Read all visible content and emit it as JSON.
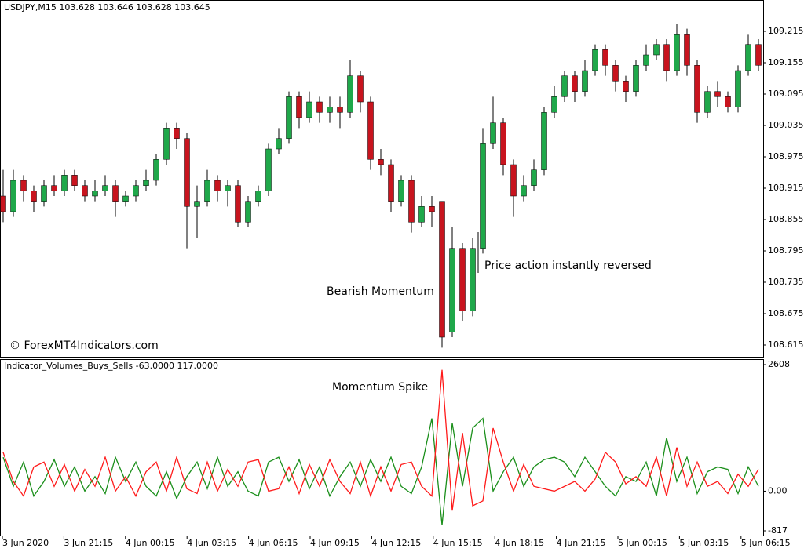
{
  "chart_data": [
    {
      "type": "candlestick",
      "title": "USDJPY,M15  103.628 103.646 103.628 103.645",
      "watermark": "© ForexMT4Indicators.com",
      "annotations": [
        "Bearish Momentum",
        "Price action instantly reversed"
      ],
      "up_color": "#1fa84a",
      "down_color": "#c8141e",
      "ylim": [
        108.5925,
        109.275
      ],
      "yticks": [
        109.215,
        109.155,
        109.095,
        109.035,
        108.975,
        108.915,
        108.855,
        108.795,
        108.735,
        108.675,
        108.615
      ],
      "candles": [
        [
          108.9,
          108.95,
          108.85,
          108.87
        ],
        [
          108.87,
          108.95,
          108.86,
          108.93
        ],
        [
          108.93,
          108.94,
          108.89,
          108.91
        ],
        [
          108.91,
          108.92,
          108.87,
          108.89
        ],
        [
          108.89,
          108.93,
          108.88,
          108.92
        ],
        [
          108.92,
          108.94,
          108.9,
          108.91
        ],
        [
          108.91,
          108.95,
          108.9,
          108.94
        ],
        [
          108.94,
          108.95,
          108.91,
          108.92
        ],
        [
          108.92,
          108.93,
          108.89,
          108.9
        ],
        [
          108.9,
          108.93,
          108.89,
          108.91
        ],
        [
          108.91,
          108.94,
          108.9,
          108.92
        ],
        [
          108.92,
          108.93,
          108.86,
          108.89
        ],
        [
          108.89,
          108.91,
          108.88,
          108.9
        ],
        [
          108.9,
          108.93,
          108.89,
          108.92
        ],
        [
          108.92,
          108.95,
          108.91,
          108.93
        ],
        [
          108.93,
          108.98,
          108.92,
          108.97
        ],
        [
          108.97,
          109.04,
          108.96,
          109.03
        ],
        [
          109.03,
          109.04,
          108.99,
          109.01
        ],
        [
          109.01,
          109.02,
          108.8,
          108.88
        ],
        [
          108.88,
          108.92,
          108.82,
          108.89
        ],
        [
          108.89,
          108.95,
          108.88,
          108.93
        ],
        [
          108.93,
          108.94,
          108.89,
          108.91
        ],
        [
          108.91,
          108.93,
          108.88,
          108.92
        ],
        [
          108.92,
          108.93,
          108.84,
          108.85
        ],
        [
          108.85,
          108.9,
          108.84,
          108.89
        ],
        [
          108.89,
          108.92,
          108.88,
          108.91
        ],
        [
          108.91,
          109.0,
          108.9,
          108.99
        ],
        [
          108.99,
          109.03,
          108.98,
          109.01
        ],
        [
          109.01,
          109.1,
          109.0,
          109.09
        ],
        [
          109.09,
          109.1,
          109.03,
          109.05
        ],
        [
          109.05,
          109.1,
          109.04,
          109.08
        ],
        [
          109.08,
          109.09,
          109.04,
          109.06
        ],
        [
          109.06,
          109.09,
          109.04,
          109.07
        ],
        [
          109.07,
          109.09,
          109.03,
          109.06
        ],
        [
          109.06,
          109.16,
          109.05,
          109.13
        ],
        [
          109.13,
          109.14,
          109.06,
          109.08
        ],
        [
          109.08,
          109.09,
          108.95,
          108.97
        ],
        [
          108.97,
          108.99,
          108.94,
          108.96
        ],
        [
          108.96,
          108.97,
          108.87,
          108.89
        ],
        [
          108.89,
          108.94,
          108.88,
          108.93
        ],
        [
          108.93,
          108.94,
          108.83,
          108.85
        ],
        [
          108.85,
          108.9,
          108.84,
          108.88
        ],
        [
          108.88,
          108.9,
          108.84,
          108.87
        ],
        [
          108.89,
          108.89,
          108.61,
          108.63
        ],
        [
          108.64,
          108.84,
          108.63,
          108.8
        ],
        [
          108.8,
          108.81,
          108.66,
          108.68
        ],
        [
          108.68,
          108.82,
          108.67,
          108.8
        ],
        [
          108.8,
          109.03,
          108.79,
          109.0
        ],
        [
          109.0,
          109.09,
          108.99,
          109.04
        ],
        [
          109.04,
          109.05,
          108.94,
          108.96
        ],
        [
          108.96,
          108.97,
          108.86,
          108.9
        ],
        [
          108.9,
          108.94,
          108.89,
          108.92
        ],
        [
          108.92,
          108.97,
          108.91,
          108.95
        ],
        [
          108.95,
          109.07,
          108.94,
          109.06
        ],
        [
          109.06,
          109.11,
          109.05,
          109.09
        ],
        [
          109.09,
          109.14,
          109.08,
          109.13
        ],
        [
          109.13,
          109.14,
          109.08,
          109.1
        ],
        [
          109.1,
          109.16,
          109.09,
          109.14
        ],
        [
          109.14,
          109.19,
          109.13,
          109.18
        ],
        [
          109.18,
          109.19,
          109.13,
          109.15
        ],
        [
          109.15,
          109.16,
          109.1,
          109.12
        ],
        [
          109.12,
          109.13,
          109.08,
          109.1
        ],
        [
          109.1,
          109.16,
          109.09,
          109.15
        ],
        [
          109.15,
          109.19,
          109.14,
          109.17
        ],
        [
          109.17,
          109.2,
          109.16,
          109.19
        ],
        [
          109.19,
          109.2,
          109.12,
          109.14
        ],
        [
          109.14,
          109.23,
          109.13,
          109.21
        ],
        [
          109.21,
          109.22,
          109.13,
          109.15
        ],
        [
          109.15,
          109.16,
          109.04,
          109.06
        ],
        [
          109.06,
          109.11,
          109.05,
          109.1
        ],
        [
          109.1,
          109.12,
          109.07,
          109.09
        ],
        [
          109.09,
          109.1,
          109.06,
          109.07
        ],
        [
          109.07,
          109.15,
          109.06,
          109.14
        ],
        [
          109.14,
          109.21,
          109.13,
          109.19
        ],
        [
          109.19,
          109.2,
          109.14,
          109.15
        ]
      ]
    },
    {
      "type": "line",
      "title": "Indicator_Volumes_Buys_Sells -63.0000 117.0000",
      "annotations": [
        "Momentum Spike"
      ],
      "ylim": [
        -817,
        2608
      ],
      "yticks": [
        2608,
        {
          "value": 0,
          "label": "0.00"
        },
        -817
      ],
      "x_labels": [
        "3 Jun 2020",
        "3 Jun 21:15",
        "4 Jun 00:15",
        "4 Jun 03:15",
        "4 Jun 06:15",
        "4 Jun 09:15",
        "4 Jun 12:15",
        "4 Jun 15:15",
        "4 Jun 18:15",
        "4 Jun 21:15",
        "5 Jun 00:15",
        "5 Jun 03:15",
        "5 Jun 06:15"
      ],
      "series": [
        {
          "color": "#1b8f1b",
          "values": [
            700,
            100,
            600,
            -100,
            200,
            650,
            100,
            500,
            0,
            300,
            -50,
            700,
            200,
            600,
            100,
            -100,
            400,
            -150,
            300,
            600,
            50,
            700,
            100,
            400,
            0,
            -100,
            600,
            700,
            200,
            650,
            50,
            500,
            -100,
            300,
            600,
            100,
            650,
            200,
            700,
            100,
            -50,
            500,
            1500,
            -700,
            1400,
            100,
            1300,
            1500,
            0,
            400,
            700,
            100,
            500,
            650,
            700,
            600,
            300,
            700,
            400,
            100,
            -100,
            300,
            200,
            600,
            -100,
            1100,
            200,
            700,
            -50,
            400,
            500,
            450,
            -50,
            500,
            100
          ]
        },
        {
          "color": "#ff1a1a",
          "values": [
            800,
            200,
            -100,
            500,
            600,
            100,
            550,
            0,
            450,
            100,
            700,
            0,
            300,
            -100,
            400,
            600,
            0,
            700,
            50,
            -50,
            600,
            0,
            450,
            100,
            600,
            650,
            0,
            50,
            500,
            -50,
            550,
            100,
            650,
            200,
            -50,
            600,
            -100,
            500,
            0,
            550,
            600,
            100,
            -100,
            2500,
            -400,
            1200,
            -300,
            -200,
            1300,
            600,
            0,
            550,
            100,
            50,
            0,
            100,
            200,
            0,
            250,
            800,
            600,
            150,
            300,
            100,
            700,
            -100,
            900,
            100,
            600,
            100,
            200,
            -50,
            350,
            100,
            450
          ]
        }
      ]
    }
  ]
}
